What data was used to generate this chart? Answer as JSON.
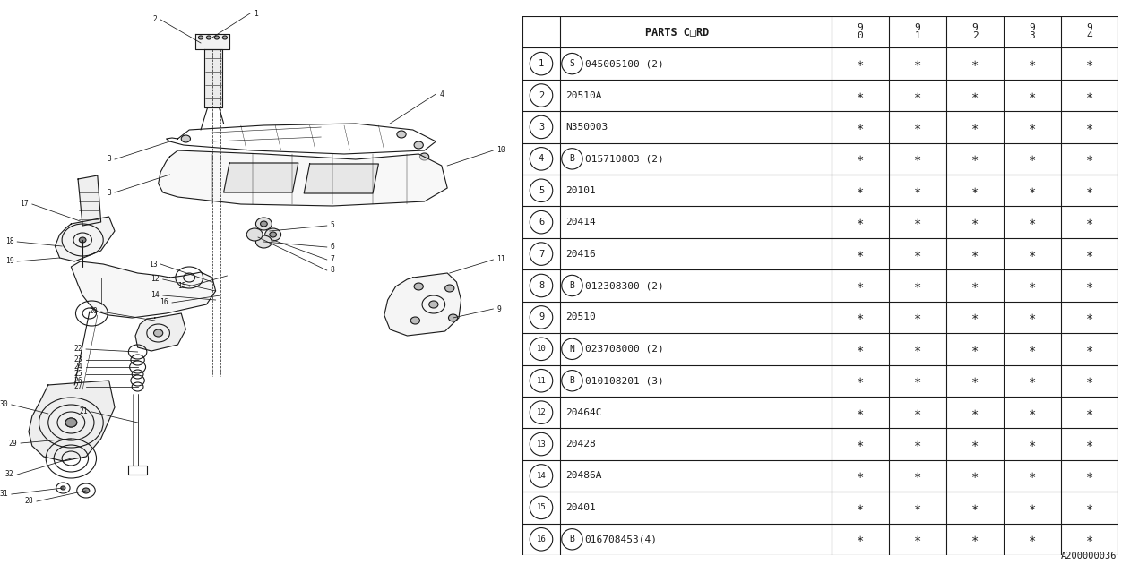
{
  "bg_color": "#ffffff",
  "rows": [
    [
      "1",
      "S",
      "045005100 (2)",
      "*",
      "*",
      "*",
      "*",
      "*"
    ],
    [
      "2",
      "",
      "20510A",
      "*",
      "*",
      "*",
      "*",
      "*"
    ],
    [
      "3",
      "",
      "N350003",
      "*",
      "*",
      "*",
      "*",
      "*"
    ],
    [
      "4",
      "B",
      "015710803 (2)",
      "*",
      "*",
      "*",
      "*",
      "*"
    ],
    [
      "5",
      "",
      "20101",
      "*",
      "*",
      "*",
      "*",
      "*"
    ],
    [
      "6",
      "",
      "20414",
      "*",
      "*",
      "*",
      "*",
      "*"
    ],
    [
      "7",
      "",
      "20416",
      "*",
      "*",
      "*",
      "*",
      "*"
    ],
    [
      "8",
      "B",
      "012308300 (2)",
      "*",
      "*",
      "*",
      "*",
      "*"
    ],
    [
      "9",
      "",
      "20510",
      "*",
      "*",
      "*",
      "*",
      "*"
    ],
    [
      "10",
      "N",
      "023708000 (2)",
      "*",
      "*",
      "*",
      "*",
      "*"
    ],
    [
      "11",
      "B",
      "010108201 (3)",
      "*",
      "*",
      "*",
      "*",
      "*"
    ],
    [
      "12",
      "",
      "20464C",
      "*",
      "*",
      "*",
      "*",
      "*"
    ],
    [
      "13",
      "",
      "20428",
      "*",
      "*",
      "*",
      "*",
      "*"
    ],
    [
      "14",
      "",
      "20486A",
      "*",
      "*",
      "*",
      "*",
      "*"
    ],
    [
      "15",
      "",
      "20401",
      "*",
      "*",
      "*",
      "*",
      "*"
    ],
    [
      "16",
      "B",
      "016708453(4)",
      "*",
      "*",
      "*",
      "*",
      "*"
    ]
  ],
  "footer_code": "A200000036",
  "line_color": "#1a1a1a",
  "table_line_color": "#1a1a1a"
}
